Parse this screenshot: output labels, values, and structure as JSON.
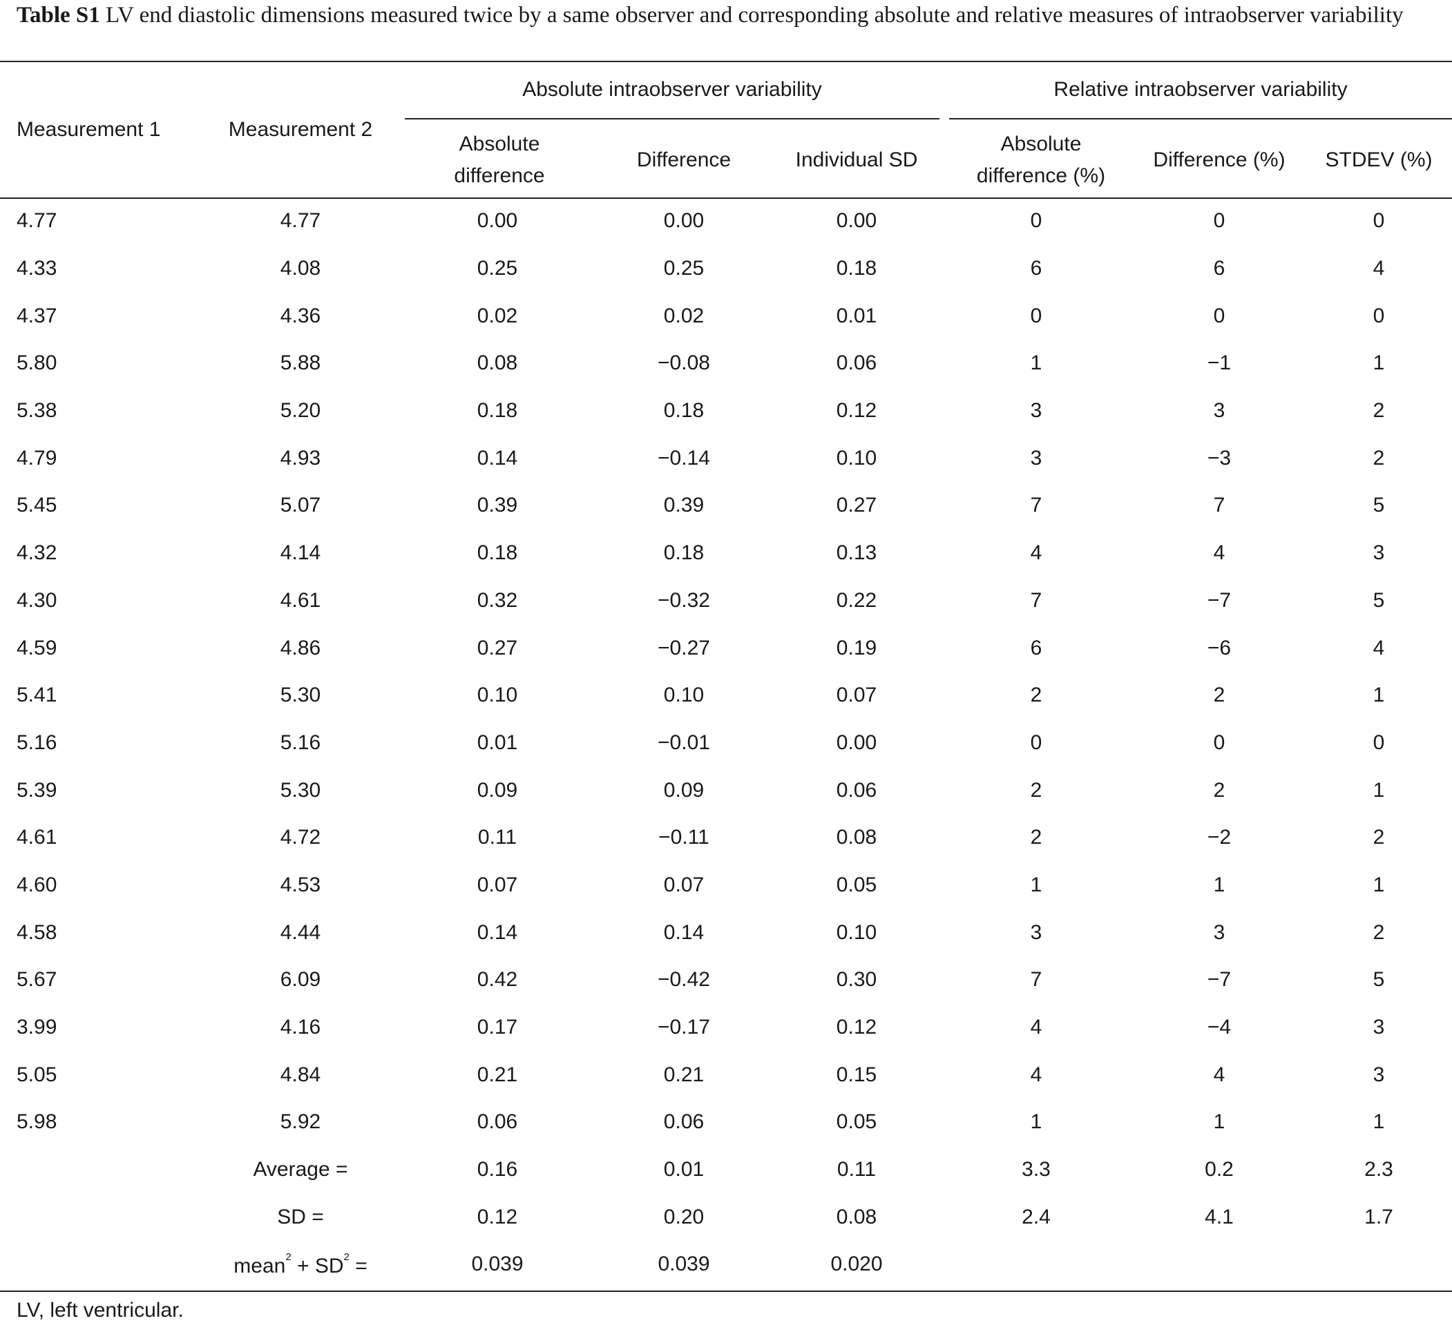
{
  "caption": {
    "label": "Table S1",
    "text": "LV end diastolic dimensions measured twice by a same observer and corresponding absolute and relative measures of intraobserver variability"
  },
  "header": {
    "measurement1": "Measurement 1",
    "measurement2": "Measurement 2",
    "group_absolute": "Absolute intraobserver variability",
    "group_relative": "Relative intraobserver variability",
    "abs_diff_line1": "Absolute",
    "abs_diff_line2": "difference",
    "difference": "Difference",
    "individual_sd": "Individual SD",
    "rel_abs_diff_line1": "Absolute",
    "rel_abs_diff_line2": "difference (%)",
    "difference_pct": "Difference (%)",
    "stdev_pct": "STDEV (%)"
  },
  "rows": [
    [
      "4.77",
      "4.77",
      "0.00",
      "0.00",
      "0.00",
      "0",
      "0",
      "0"
    ],
    [
      "4.33",
      "4.08",
      "0.25",
      "0.25",
      "0.18",
      "6",
      "6",
      "4"
    ],
    [
      "4.37",
      "4.36",
      "0.02",
      "0.02",
      "0.01",
      "0",
      "0",
      "0"
    ],
    [
      "5.80",
      "5.88",
      "0.08",
      "−0.08",
      "0.06",
      "1",
      "−1",
      "1"
    ],
    [
      "5.38",
      "5.20",
      "0.18",
      "0.18",
      "0.12",
      "3",
      "3",
      "2"
    ],
    [
      "4.79",
      "4.93",
      "0.14",
      "−0.14",
      "0.10",
      "3",
      "−3",
      "2"
    ],
    [
      "5.45",
      "5.07",
      "0.39",
      "0.39",
      "0.27",
      "7",
      "7",
      "5"
    ],
    [
      "4.32",
      "4.14",
      "0.18",
      "0.18",
      "0.13",
      "4",
      "4",
      "3"
    ],
    [
      "4.30",
      "4.61",
      "0.32",
      "−0.32",
      "0.22",
      "7",
      "−7",
      "5"
    ],
    [
      "4.59",
      "4.86",
      "0.27",
      "−0.27",
      "0.19",
      "6",
      "−6",
      "4"
    ],
    [
      "5.41",
      "5.30",
      "0.10",
      "0.10",
      "0.07",
      "2",
      "2",
      "1"
    ],
    [
      "5.16",
      "5.16",
      "0.01",
      "−0.01",
      "0.00",
      "0",
      "0",
      "0"
    ],
    [
      "5.39",
      "5.30",
      "0.09",
      "0.09",
      "0.06",
      "2",
      "2",
      "1"
    ],
    [
      "4.61",
      "4.72",
      "0.11",
      "−0.11",
      "0.08",
      "2",
      "−2",
      "2"
    ],
    [
      "4.60",
      "4.53",
      "0.07",
      "0.07",
      "0.05",
      "1",
      "1",
      "1"
    ],
    [
      "4.58",
      "4.44",
      "0.14",
      "0.14",
      "0.10",
      "3",
      "3",
      "2"
    ],
    [
      "5.67",
      "6.09",
      "0.42",
      "−0.42",
      "0.30",
      "7",
      "−7",
      "5"
    ],
    [
      "3.99",
      "4.16",
      "0.17",
      "−0.17",
      "0.12",
      "4",
      "−4",
      "3"
    ],
    [
      "5.05",
      "4.84",
      "0.21",
      "0.21",
      "0.15",
      "4",
      "4",
      "3"
    ],
    [
      "5.98",
      "5.92",
      "0.06",
      "0.06",
      "0.05",
      "1",
      "1",
      "1"
    ]
  ],
  "summary": {
    "average": {
      "label": "Average =",
      "values": [
        "0.16",
        "0.01",
        "0.11",
        "3.3",
        "0.2",
        "2.3"
      ]
    },
    "sd": {
      "label": "SD =",
      "values": [
        "0.12",
        "0.20",
        "0.08",
        "2.4",
        "4.1",
        "1.7"
      ]
    },
    "msq": {
      "label_mean": "mean",
      "label_plus": " + SD",
      "label_eq": " =",
      "sup": "2",
      "values": [
        "0.039",
        "0.039",
        "0.020"
      ]
    }
  },
  "footnote": "LV, left ventricular."
}
